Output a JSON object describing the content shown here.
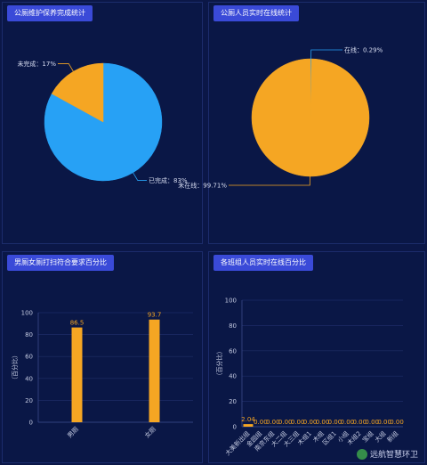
{
  "watermark": "远航智慧环卫",
  "panels": {
    "p1": {
      "title": "公厕维护保养完成统计"
    },
    "p2": {
      "title": "公厕人员实时在线统计"
    },
    "p3": {
      "title": "男厕女厕打扫符合要求百分比"
    },
    "p4": {
      "title": "各班组人员实时在线百分比"
    }
  },
  "chart_data": [
    {
      "type": "pie",
      "title": "公厕维护保养完成统计",
      "labels": [
        "已完成",
        "未完成"
      ],
      "values": [
        83,
        17
      ],
      "label_texts": [
        "已完成：83%",
        "未完成：17%"
      ],
      "colors": [
        "#27a1f5",
        "#f5a623"
      ]
    },
    {
      "type": "pie",
      "title": "公厕人员实时在线统计",
      "labels": [
        "在线",
        "未在线"
      ],
      "values": [
        0.29,
        99.71
      ],
      "label_texts": [
        "在线：0.29%",
        "未在线：99.71%"
      ],
      "colors": [
        "#27a1f5",
        "#f5a623"
      ]
    },
    {
      "type": "bar",
      "title": "男厕女厕打扫符合要求百分比",
      "ylabel": "（百分比）",
      "categories": [
        "男厕",
        "女厕"
      ],
      "values": [
        86.5,
        93.7
      ],
      "value_labels": [
        "86.5",
        "93.7"
      ],
      "ylim": [
        0,
        100
      ],
      "yticks": [
        "0",
        "20",
        "40",
        "60",
        "80",
        "100"
      ],
      "color": "#f5a623"
    },
    {
      "type": "bar",
      "title": "各班组人员实时在线百分比",
      "ylabel": "（百分比）",
      "categories": [
        "大美新出组",
        "金园组",
        "南京东组",
        "大二组",
        "大三组",
        "木组1",
        "木组",
        "区组1",
        "小组",
        "木组2",
        "宝组",
        "大组",
        "新组"
      ],
      "values": [
        2.04,
        0,
        0,
        0,
        0,
        0,
        0,
        0,
        0,
        0,
        0,
        0,
        0
      ],
      "value_labels": [
        "2.04",
        "0.00",
        "0.00",
        "0.00",
        "0.00",
        "0.00",
        "0.00",
        "0.00",
        "0.00",
        "0.00",
        "0.00",
        "0.00",
        "0.00"
      ],
      "ylim": [
        0,
        100
      ],
      "yticks": [
        "0",
        "20",
        "40",
        "60",
        "80",
        "100"
      ],
      "color": "#f5a623"
    }
  ]
}
